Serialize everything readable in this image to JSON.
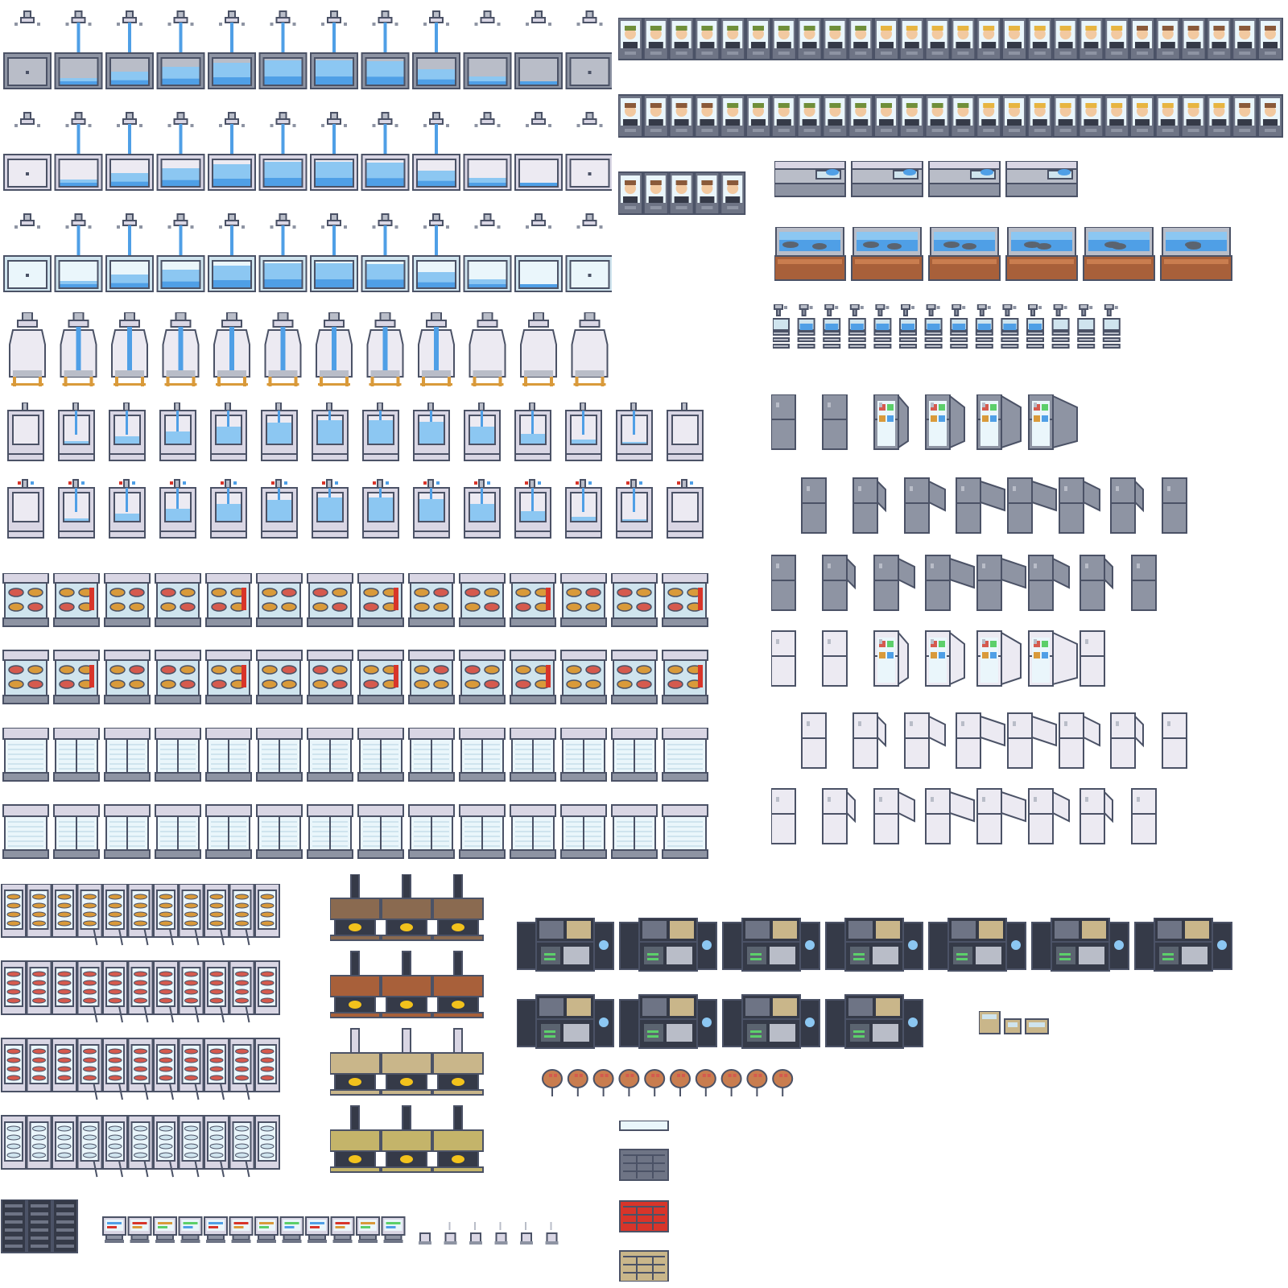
{
  "sheet": {
    "background": "#ffffff",
    "kind": "pixel-art sprite sheet"
  },
  "palette": {
    "outline": "#4b5266",
    "steel": "#8e94a3",
    "steel_dark": "#6e7485",
    "steel_light": "#b9bdc8",
    "lavender": "#d9d6e4",
    "lavender_light": "#eceaf2",
    "water": "#4f9fe6",
    "water_light": "#8cc7f2",
    "glass": "#cfe4ee",
    "ice": "#eaf6fb",
    "wood": "#a8603a",
    "wood_light": "#c97d4f",
    "brown": "#8a6a50",
    "tan": "#c9b68a",
    "olive": "#c4b46a",
    "fire": "#f2c21c",
    "red": "#d8352a",
    "meat": "#d55a4e",
    "bread": "#d99a3a",
    "screen_dark": "#353a48",
    "screen_green": "#5ccf6a",
    "hair_green": "#6f8f3a",
    "hair_blonde": "#e7b541",
    "hair_brown": "#8a5a3a",
    "skin": "#f2c9a0",
    "fish": "#5b6470"
  },
  "groups": [
    {
      "name": "steel-sink-fill-frames",
      "icon": "sink-icon",
      "frames": 12
    },
    {
      "name": "white-sink-fill-frames",
      "icon": "sink-icon",
      "frames": 12
    },
    {
      "name": "ice-sink-fill-frames",
      "icon": "sink-icon",
      "frames": 12
    },
    {
      "name": "water-cooler-frames",
      "icon": "water-dispenser-icon",
      "frames": 12
    },
    {
      "name": "wall-sink-frames",
      "icon": "wall-sink-icon",
      "frames": 14
    },
    {
      "name": "wall-sink-tap-frames",
      "icon": "wall-sink-icon",
      "frames": 14
    },
    {
      "name": "food-display-frames",
      "icon": "food-display-icon",
      "frames": 14
    },
    {
      "name": "food-display-alt-frames",
      "icon": "food-display-icon",
      "frames": 14
    },
    {
      "name": "glass-cabinet-frames",
      "icon": "cabinet-icon",
      "frames": 14
    },
    {
      "name": "glass-cabinet-alt-frames",
      "icon": "cabinet-icon",
      "frames": 14
    },
    {
      "name": "vending-machine-frames",
      "icon": "vending-machine-icon",
      "frames": 12
    },
    {
      "name": "stove-chimney-frames",
      "icon": "stove-icon",
      "frames": 12
    },
    {
      "name": "server-rack",
      "icon": "server-icon",
      "frames": 3
    },
    {
      "name": "small-monitor-frames",
      "icon": "monitor-icon",
      "frames": 12
    },
    {
      "name": "coffee-cup-frames",
      "icon": "cup-icon",
      "frames": 6
    },
    {
      "name": "portrait-booth-frames",
      "icon": "portrait-icon",
      "frames": 59
    },
    {
      "name": "counter-frames",
      "icon": "counter-icon",
      "frames": 4
    },
    {
      "name": "aquarium-frames",
      "icon": "aquarium-icon",
      "frames": 6
    },
    {
      "name": "tap-dispenser-frames",
      "icon": "tap-icon",
      "frames": 14
    },
    {
      "name": "steel-fridge-open-frames",
      "icon": "fridge-icon",
      "frames": 6
    },
    {
      "name": "steel-fridge-side-frames",
      "icon": "fridge-icon",
      "frames": 8
    },
    {
      "name": "steel-fridge-side-alt-frames",
      "icon": "fridge-icon",
      "frames": 8
    },
    {
      "name": "white-fridge-open-frames",
      "icon": "fridge-icon",
      "frames": 7
    },
    {
      "name": "white-fridge-side-frames",
      "icon": "fridge-icon",
      "frames": 8
    },
    {
      "name": "white-fridge-side-alt-frames",
      "icon": "fridge-icon",
      "frames": 8
    },
    {
      "name": "control-desk-frames",
      "icon": "control-desk-icon",
      "frames": 11
    },
    {
      "name": "small-boxes",
      "icon": "box-icon",
      "frames": 3
    },
    {
      "name": "roast-chicken-frames",
      "icon": "chicken-icon",
      "frames": 10
    },
    {
      "name": "shelf-variants",
      "icon": "shelf-icon",
      "frames": 4
    }
  ]
}
